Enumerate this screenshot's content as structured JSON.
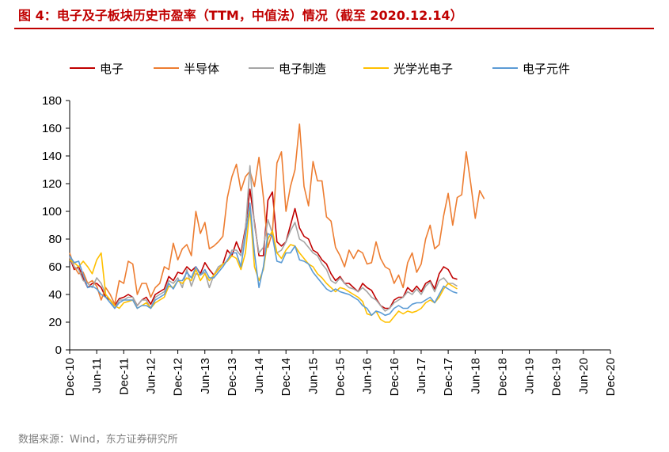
{
  "title": "图 4：电子及子板块历史市盈率（TTM，中值法）情况（截至 2020.12.14）",
  "source": "数据来源：Wind，东方证券研究所",
  "chart_data": {
    "type": "line",
    "ylim": [
      0,
      180
    ],
    "yticks": [
      0,
      20,
      40,
      60,
      80,
      100,
      120,
      140,
      160,
      180
    ],
    "xticks": [
      "Dec-10",
      "Jun-11",
      "Dec-11",
      "Jun-12",
      "Dec-12",
      "Jun-13",
      "Dec-13",
      "Jun-14",
      "Dec-14",
      "Jun-15",
      "Dec-15",
      "Jun-16",
      "Dec-16",
      "Jun-17",
      "Dec-17",
      "Jun-18",
      "Dec-18",
      "Jun-19",
      "Dec-19",
      "Jun-20",
      "Dec-20"
    ],
    "x_period": "monthly",
    "legend_position": "top",
    "grid": false,
    "series": [
      {
        "name": "电子",
        "color": "#c00000",
        "values": [
          67,
          58,
          60,
          52,
          45,
          48,
          48,
          45,
          38,
          36,
          32,
          37,
          38,
          40,
          38,
          32,
          36,
          38,
          33,
          40,
          42,
          44,
          53,
          50,
          56,
          55,
          60,
          57,
          60,
          55,
          63,
          58,
          54,
          58,
          62,
          72,
          68,
          78,
          70,
          88,
          116,
          92,
          68,
          68,
          108,
          114,
          78,
          75,
          78,
          90,
          102,
          88,
          82,
          80,
          72,
          70,
          65,
          62,
          55,
          50,
          53,
          48,
          48,
          45,
          42,
          48,
          45,
          43,
          37,
          32,
          30,
          30,
          36,
          38,
          38,
          45,
          42,
          46,
          42,
          48,
          50,
          44,
          55,
          60,
          58,
          52,
          51
        ]
      },
      {
        "name": "半导体",
        "color": "#ed7d31",
        "values": [
          70,
          60,
          55,
          56,
          48,
          50,
          46,
          36,
          45,
          40,
          33,
          50,
          48,
          64,
          62,
          40,
          48,
          48,
          38,
          45,
          48,
          60,
          58,
          77,
          65,
          73,
          76,
          68,
          100,
          84,
          92,
          73,
          75,
          78,
          82,
          110,
          125,
          134,
          115,
          125,
          129,
          118,
          139,
          110,
          74,
          85,
          135,
          143,
          100,
          118,
          130,
          163,
          118,
          104,
          136,
          122,
          122,
          96,
          93,
          74,
          68,
          60,
          72,
          66,
          72,
          70,
          62,
          63,
          78,
          66,
          60,
          58,
          48,
          54,
          45,
          63,
          70,
          56,
          62,
          80,
          90,
          73,
          76,
          97,
          113,
          90,
          110,
          112,
          143,
          120,
          95,
          115,
          109
        ]
      },
      {
        "name": "电子制造",
        "color": "#a5a5a5",
        "values": [
          67,
          60,
          58,
          50,
          48,
          45,
          52,
          48,
          40,
          36,
          30,
          36,
          36,
          38,
          38,
          32,
          36,
          36,
          30,
          38,
          40,
          42,
          50,
          48,
          52,
          45,
          58,
          46,
          55,
          54,
          56,
          45,
          54,
          60,
          62,
          64,
          72,
          72,
          68,
          86,
          133,
          90,
          70,
          74,
          94,
          84,
          70,
          72,
          78,
          86,
          92,
          80,
          78,
          74,
          70,
          68,
          62,
          58,
          50,
          48,
          52,
          48,
          45,
          44,
          42,
          45,
          42,
          38,
          36,
          32,
          28,
          30,
          34,
          36,
          38,
          42,
          40,
          44,
          40,
          46,
          49,
          42,
          50,
          52,
          48,
          48,
          46
        ]
      },
      {
        "name": "光学光电子",
        "color": "#ffc000",
        "values": [
          65,
          63,
          60,
          64,
          60,
          55,
          65,
          70,
          40,
          36,
          32,
          30,
          34,
          35,
          36,
          30,
          32,
          34,
          30,
          34,
          36,
          38,
          46,
          45,
          50,
          48,
          52,
          50,
          58,
          50,
          55,
          50,
          54,
          58,
          62,
          64,
          68,
          66,
          58,
          70,
          102,
          60,
          50,
          58,
          80,
          86,
          70,
          66,
          72,
          76,
          75,
          70,
          66,
          62,
          60,
          55,
          52,
          48,
          45,
          42,
          45,
          44,
          42,
          40,
          38,
          35,
          26,
          25,
          28,
          22,
          20,
          20,
          24,
          28,
          26,
          28,
          27,
          28,
          30,
          34,
          36,
          34,
          38,
          44,
          48,
          46,
          44
        ]
      },
      {
        "name": "电子元件",
        "color": "#5b9bd5",
        "values": [
          68,
          63,
          64,
          54,
          45,
          46,
          44,
          40,
          38,
          34,
          30,
          34,
          36,
          36,
          36,
          30,
          32,
          32,
          30,
          36,
          38,
          40,
          48,
          44,
          50,
          50,
          56,
          52,
          60,
          54,
          58,
          52,
          52,
          56,
          60,
          65,
          70,
          70,
          60,
          82,
          106,
          70,
          45,
          60,
          84,
          82,
          64,
          63,
          70,
          70,
          75,
          65,
          64,
          62,
          56,
          52,
          48,
          44,
          42,
          44,
          42,
          41,
          40,
          38,
          36,
          32,
          30,
          25,
          28,
          27,
          25,
          26,
          30,
          32,
          30,
          30,
          33,
          34,
          34,
          36,
          38,
          34,
          40,
          46,
          44,
          42,
          41
        ]
      }
    ]
  }
}
